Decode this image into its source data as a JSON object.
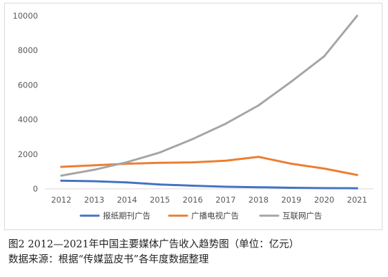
{
  "caption": {
    "title": "图2 2012—2021年中国主要媒体广告收入趋势图（单位：亿元）",
    "source": "数据来源：根据“传媒蓝皮书”各年度数据整理"
  },
  "chart_data": {
    "type": "line",
    "categories": [
      "2012",
      "2013",
      "2014",
      "2015",
      "2016",
      "2017",
      "2018",
      "2019",
      "2020",
      "2021"
    ],
    "ylim": [
      0,
      10000
    ],
    "yticks": [
      "0",
      "2000",
      "4000",
      "6000",
      "8000",
      "10000"
    ],
    "grid": false,
    "legend_position": "bottom",
    "series": [
      {
        "name": "报纸期刊广告",
        "color": "#4472c4",
        "values": [
          470,
          440,
          370,
          250,
          180,
          120,
          90,
          60,
          40,
          30
        ]
      },
      {
        "name": "广播电视广告",
        "color": "#ed7d31",
        "values": [
          1270,
          1360,
          1450,
          1500,
          1530,
          1620,
          1850,
          1450,
          1170,
          800
        ]
      },
      {
        "name": "互联网广告",
        "color": "#a5a5a5",
        "values": [
          760,
          1100,
          1540,
          2100,
          2880,
          3760,
          4820,
          6200,
          7660,
          10000
        ]
      }
    ]
  }
}
